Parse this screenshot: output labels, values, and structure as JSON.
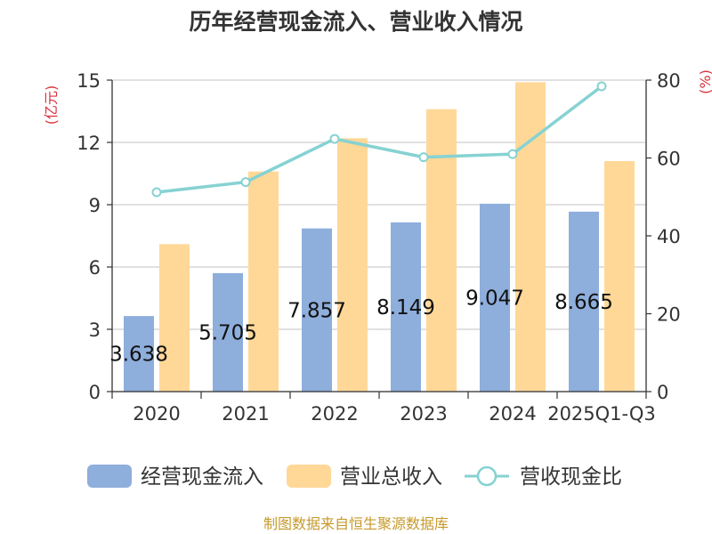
{
  "chart_data": {
    "type": "bar",
    "title": "历年经营现金流入、营业收入情况",
    "categories": [
      "2020",
      "2021",
      "2022",
      "2023",
      "2024",
      "2025Q1-Q3"
    ],
    "series": [
      {
        "name": "经营现金流入",
        "kind": "bar",
        "axis": "left",
        "color": "#8eaedc",
        "values": [
          3.638,
          5.705,
          7.857,
          8.149,
          9.047,
          8.665
        ],
        "labels": [
          "3.638",
          "5.705",
          "7.857",
          "8.149",
          "9.047",
          "8.665"
        ]
      },
      {
        "name": "营业总收入",
        "kind": "bar",
        "axis": "left",
        "color": "#ffd898",
        "values": [
          7.1,
          10.6,
          12.2,
          13.6,
          14.9,
          11.1
        ]
      },
      {
        "name": "营收现金比",
        "kind": "line",
        "axis": "right",
        "color": "#86d2d2",
        "values": [
          51.2,
          53.8,
          64.9,
          60.2,
          61.0,
          78.4
        ]
      }
    ],
    "yleft": {
      "label": "(亿元)",
      "min": 0,
      "max": 15,
      "ticks": [
        "0",
        "3",
        "6",
        "9",
        "12",
        "15"
      ]
    },
    "yright": {
      "label": "(%)",
      "min": 0,
      "max": 80,
      "ticks": [
        "0",
        "20",
        "40",
        "60",
        "80"
      ]
    },
    "grid": true,
    "legend": "bottom"
  },
  "source": "制图数据来自恒生聚源数据库"
}
